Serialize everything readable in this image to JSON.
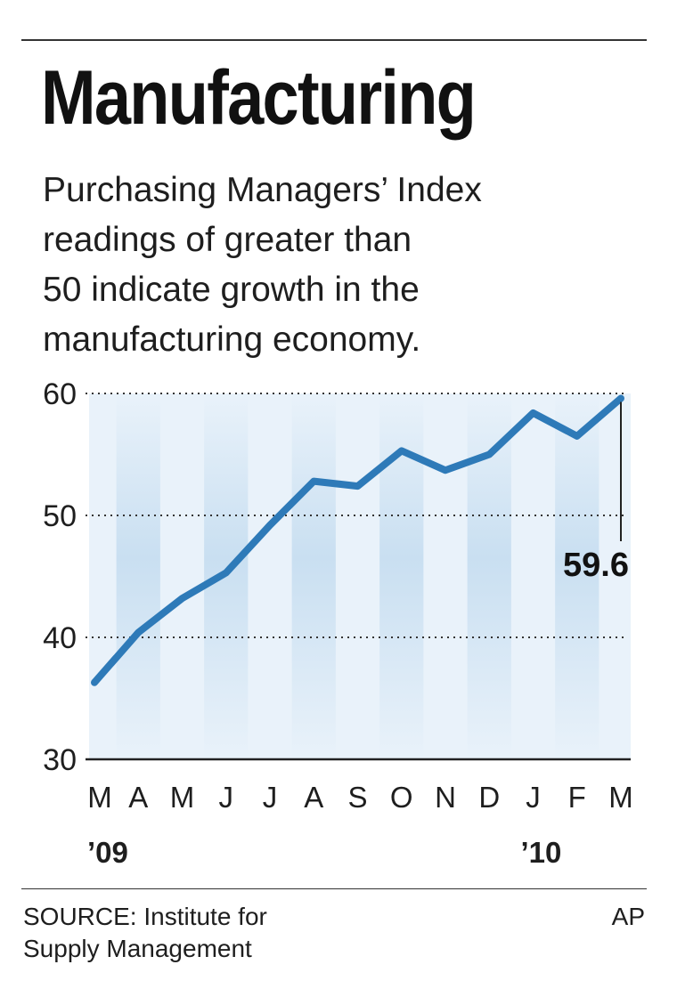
{
  "header": {
    "title": "Manufacturing",
    "subtitle": "Purchasing Managers’ Index\nreadings of greater than\n50 indicate growth in the\nmanufacturing economy."
  },
  "footer": {
    "source": "SOURCE: Institute for\nSupply Management",
    "credit": "AP"
  },
  "colors": {
    "line": "#2e7ab8",
    "band_light": "#e9f2fa",
    "band_dark": "#c9dff1"
  },
  "chart_data": {
    "type": "line",
    "categories": [
      "M",
      "A",
      "M",
      "J",
      "J",
      "A",
      "S",
      "O",
      "N",
      "D",
      "J",
      "F",
      "M"
    ],
    "year_labels": [
      {
        "index": 0,
        "label": "’09"
      },
      {
        "index": 10,
        "label": "’10"
      }
    ],
    "values": [
      36.3,
      40.4,
      43.2,
      45.3,
      49.2,
      52.8,
      52.4,
      55.3,
      53.7,
      55.0,
      58.4,
      56.5,
      59.6
    ],
    "yticks": [
      30,
      40,
      50,
      60
    ],
    "ylim": [
      30,
      60
    ],
    "dotted_gridlines": [
      40,
      50,
      60
    ],
    "annotation": {
      "index": 12,
      "label": "59.6"
    },
    "grid": true,
    "legend": "none"
  }
}
